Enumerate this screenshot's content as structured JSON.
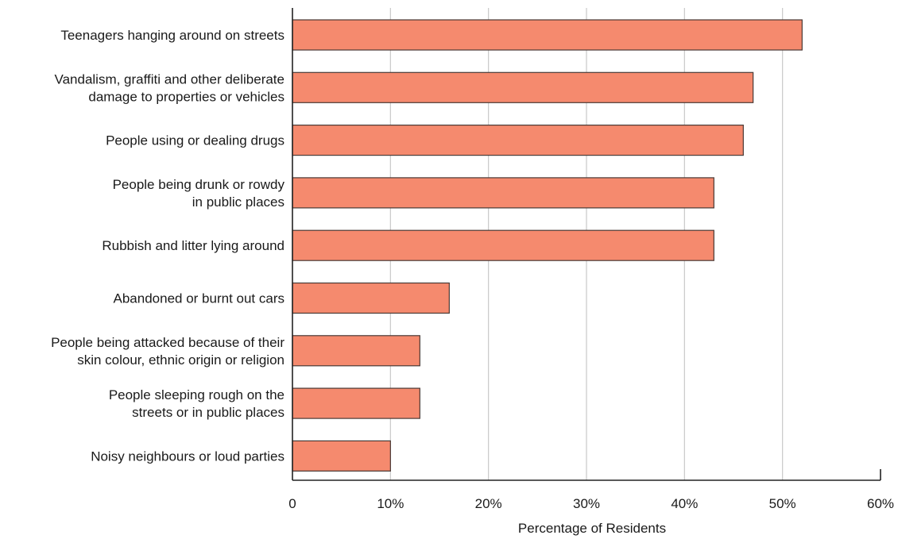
{
  "chart_data": {
    "type": "bar",
    "orientation": "horizontal",
    "categories": [
      [
        "Teenagers hanging around on streets"
      ],
      [
        "Vandalism, graffiti and other deliberate",
        "damage to properties or vehicles"
      ],
      [
        "People using or dealing drugs"
      ],
      [
        "People being drunk or rowdy",
        "in public places"
      ],
      [
        "Rubbish and litter lying around"
      ],
      [
        "Abandoned or burnt out cars"
      ],
      [
        "People being attacked because of their",
        "skin colour, ethnic origin or religion"
      ],
      [
        "People sleeping rough on the",
        "streets or in public places"
      ],
      [
        "Noisy neighbours or loud parties"
      ]
    ],
    "values": [
      52,
      47,
      46,
      43,
      43,
      16,
      13,
      13,
      10
    ],
    "title": "",
    "xlabel": "Percentage of Residents",
    "ylabel": "",
    "xlim": [
      0,
      60
    ],
    "ticks": [
      0,
      10,
      20,
      30,
      40,
      50,
      60
    ],
    "tick_labels": [
      "0",
      "10%",
      "20%",
      "30%",
      "40%",
      "50%",
      "60%"
    ],
    "grid": true,
    "colors": {
      "bar": "#f58a6e",
      "bar_edge": "#4a3a36",
      "grid": "#c8c8c8",
      "axis": "#222222"
    }
  }
}
